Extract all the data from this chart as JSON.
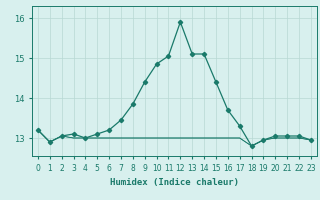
{
  "x": [
    0,
    1,
    2,
    3,
    4,
    5,
    6,
    7,
    8,
    9,
    10,
    11,
    12,
    13,
    14,
    15,
    16,
    17,
    18,
    19,
    20,
    21,
    22,
    23
  ],
  "line_main": [
    13.2,
    12.9,
    13.05,
    13.1,
    13.0,
    13.1,
    13.2,
    13.45,
    13.85,
    14.4,
    14.85,
    15.05,
    15.9,
    15.1,
    15.1,
    14.4,
    13.7,
    13.3,
    12.8,
    12.95,
    13.05,
    13.05,
    13.05,
    12.95
  ],
  "line_flat1": [
    13.2,
    12.9,
    13.05,
    13.0,
    13.0,
    13.0,
    13.0,
    13.0,
    13.0,
    13.0,
    13.0,
    13.0,
    13.0,
    13.0,
    13.0,
    13.0,
    13.0,
    13.0,
    12.8,
    12.95,
    13.0,
    13.0,
    13.0,
    12.95
  ],
  "line_flat2": [
    13.2,
    12.9,
    13.05,
    13.0,
    13.0,
    13.0,
    13.0,
    13.0,
    13.0,
    13.0,
    13.0,
    13.0,
    13.0,
    13.0,
    13.0,
    13.0,
    13.0,
    13.0,
    12.8,
    12.95,
    13.0,
    13.0,
    13.0,
    12.95
  ],
  "line_color": "#1a7a6a",
  "bg_color": "#d8f0ee",
  "grid_color": "#b8d8d4",
  "xlabel": "Humidex (Indice chaleur)",
  "yticks": [
    13,
    14,
    15,
    16
  ],
  "xtick_labels": [
    "0",
    "1",
    "2",
    "3",
    "4",
    "5",
    "6",
    "7",
    "8",
    "9",
    "10",
    "11",
    "12",
    "13",
    "14",
    "15",
    "16",
    "17",
    "18",
    "19",
    "20",
    "21",
    "22",
    "23"
  ],
  "ylim": [
    12.55,
    16.3
  ],
  "xlim": [
    -0.5,
    23.5
  ],
  "xlabel_fontsize": 6.5,
  "tick_fontsize": 6.0,
  "line_width": 0.9,
  "marker_size": 2.2
}
